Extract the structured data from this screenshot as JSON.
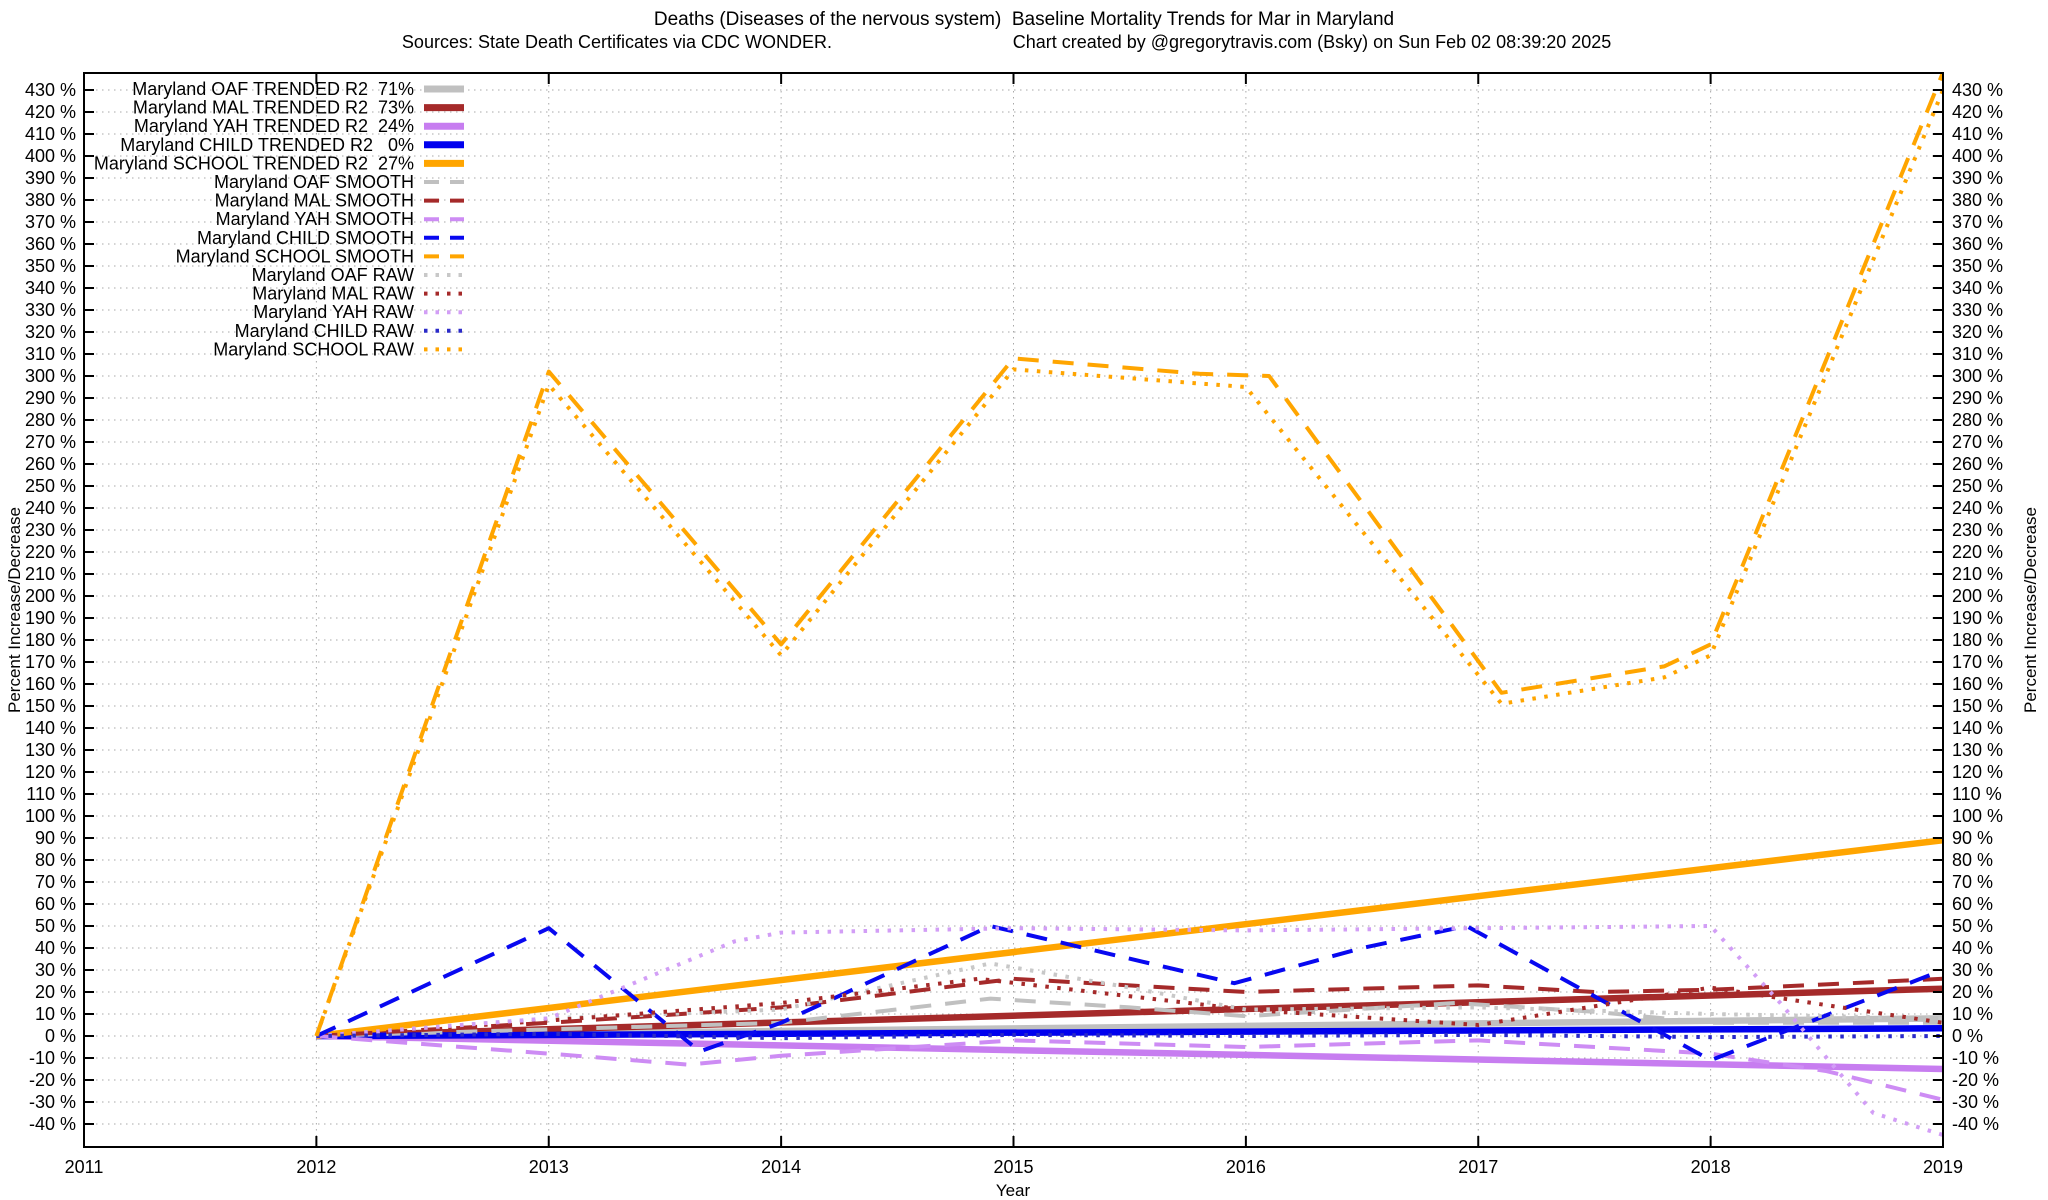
{
  "header": {
    "title": "Deaths (Diseases of the nervous system)  Baseline Mortality Trends for Mar in Maryland",
    "subtitle_left": "Sources: State Death Certificates via CDC WONDER.",
    "subtitle_right": "Chart created by @gregorytravis.com (Bsky) on Sun Feb 02 08:39:20 2025"
  },
  "chart_data": {
    "type": "line",
    "title": "Deaths (Diseases of the nervous system)  Baseline Mortality Trends for Mar in Maryland",
    "xlabel": "Year",
    "ylabel_left": "Percent Increase/Decrease",
    "ylabel_right": "Percent Increase/Decrease",
    "xlim": [
      2011,
      2019
    ],
    "ylim": [
      -50.5,
      437.7
    ],
    "x_ticks": [
      2011,
      2012,
      2013,
      2014,
      2015,
      2016,
      2017,
      2018,
      2019
    ],
    "y_ticks_pct": {
      "min": -40,
      "max": 430,
      "step": 10,
      "suffix": " %"
    },
    "grid": true,
    "legend_position": "top-left-inside",
    "series": [
      {
        "id": "oaf-trended",
        "label": "Maryland OAF TRENDED R2  71%",
        "r2": "71%",
        "color": "#c0c0c0",
        "style": "trended",
        "points": [
          [
            2012,
            0
          ],
          [
            2019,
            8
          ]
        ]
      },
      {
        "id": "mal-trended",
        "label": "Maryland MAL TRENDED R2  73%",
        "r2": "73%",
        "color": "#a52a2a",
        "style": "trended",
        "points": [
          [
            2012,
            0
          ],
          [
            2019,
            21.5
          ]
        ]
      },
      {
        "id": "yah-trended",
        "label": "Maryland YAH TRENDED R2  24%",
        "r2": "24%",
        "color": "#c77df0",
        "style": "trended",
        "points": [
          [
            2012,
            0
          ],
          [
            2019,
            -15
          ]
        ]
      },
      {
        "id": "child-trended",
        "label": "Maryland CHILD TRENDED R2   0%",
        "r2": "0%",
        "color": "#0000ee",
        "style": "trended",
        "points": [
          [
            2012,
            0
          ],
          [
            2019,
            3.5
          ]
        ]
      },
      {
        "id": "school-trended",
        "label": "Maryland SCHOOL TRENDED R2  27%",
        "r2": "27%",
        "color": "#ffa500",
        "style": "trended",
        "points": [
          [
            2012,
            0
          ],
          [
            2019,
            89
          ]
        ]
      },
      {
        "id": "oaf-smooth",
        "label": "Maryland OAF SMOOTH",
        "color": "#c0c0c0",
        "style": "smooth",
        "points": [
          [
            2012,
            0
          ],
          [
            2013,
            3
          ],
          [
            2014,
            6
          ],
          [
            2014.9,
            17
          ],
          [
            2015.5,
            13
          ],
          [
            2016,
            9
          ],
          [
            2016.9,
            15
          ],
          [
            2017.5,
            11
          ],
          [
            2018,
            6
          ],
          [
            2019,
            6
          ]
        ]
      },
      {
        "id": "mal-smooth",
        "label": "Maryland MAL SMOOTH",
        "color": "#a52a2a",
        "style": "smooth",
        "points": [
          [
            2012,
            0
          ],
          [
            2013,
            6
          ],
          [
            2014,
            13
          ],
          [
            2015,
            26
          ],
          [
            2015.5,
            23
          ],
          [
            2016,
            20
          ],
          [
            2017,
            23
          ],
          [
            2017.5,
            20
          ],
          [
            2018,
            21
          ],
          [
            2019,
            26
          ]
        ]
      },
      {
        "id": "yah-smooth",
        "label": "Maryland YAH SMOOTH",
        "color": "#cd8cf4",
        "style": "smooth",
        "points": [
          [
            2012,
            0
          ],
          [
            2013,
            -8
          ],
          [
            2013.6,
            -13
          ],
          [
            2014,
            -9
          ],
          [
            2015,
            -2
          ],
          [
            2016,
            -5
          ],
          [
            2017,
            -2
          ],
          [
            2018,
            -8
          ],
          [
            2018.5,
            -16
          ],
          [
            2019,
            -29
          ]
        ]
      },
      {
        "id": "child-smooth",
        "label": "Maryland CHILD SMOOTH",
        "color": "#0808f0",
        "style": "smooth",
        "points": [
          [
            2012,
            0
          ],
          [
            2013,
            49
          ],
          [
            2013.65,
            -7
          ],
          [
            2014,
            6
          ],
          [
            2014.9,
            50
          ],
          [
            2015.95,
            24
          ],
          [
            2016.5,
            40
          ],
          [
            2016.95,
            50
          ],
          [
            2018,
            -11
          ],
          [
            2019,
            30
          ]
        ]
      },
      {
        "id": "school-smooth",
        "label": "Maryland SCHOOL SMOOTH",
        "color": "#ffa500",
        "style": "smooth",
        "points": [
          [
            2012,
            0
          ],
          [
            2013,
            302
          ],
          [
            2014,
            178
          ],
          [
            2015,
            308
          ],
          [
            2015.8,
            301
          ],
          [
            2016.1,
            300
          ],
          [
            2017.1,
            156
          ],
          [
            2017.8,
            168
          ],
          [
            2018,
            178
          ],
          [
            2019,
            438
          ]
        ]
      },
      {
        "id": "oaf-raw",
        "label": "Maryland OAF RAW",
        "color": "#c8c8c8",
        "style": "raw",
        "points": [
          [
            2012,
            0
          ],
          [
            2013,
            8
          ],
          [
            2014,
            12
          ],
          [
            2014.9,
            33
          ],
          [
            2015.5,
            22
          ],
          [
            2016,
            12
          ],
          [
            2017,
            13
          ],
          [
            2018,
            10
          ],
          [
            2019,
            8
          ]
        ]
      },
      {
        "id": "mal-raw",
        "label": "Maryland MAL RAW",
        "color": "#a52a2a",
        "style": "raw",
        "points": [
          [
            2012,
            0
          ],
          [
            2013,
            7
          ],
          [
            2014,
            15
          ],
          [
            2014.85,
            26
          ],
          [
            2016,
            12
          ],
          [
            2017,
            5
          ],
          [
            2018,
            22
          ],
          [
            2019,
            6
          ]
        ]
      },
      {
        "id": "yah-raw",
        "label": "Maryland YAH RAW",
        "color": "#d29ef6",
        "style": "raw",
        "points": [
          [
            2012,
            0
          ],
          [
            2013,
            8
          ],
          [
            2013.8,
            43
          ],
          [
            2014,
            47
          ],
          [
            2015,
            49
          ],
          [
            2016,
            48
          ],
          [
            2017,
            49
          ],
          [
            2018,
            50
          ],
          [
            2018.3,
            15
          ],
          [
            2018.7,
            -35
          ],
          [
            2019,
            -45
          ]
        ]
      },
      {
        "id": "child-raw",
        "label": "Maryland CHILD RAW",
        "color": "#2a2ac8",
        "style": "raw",
        "points": [
          [
            2012,
            0
          ],
          [
            2013,
            1
          ],
          [
            2014,
            -1
          ],
          [
            2015,
            0.5
          ],
          [
            2016,
            0
          ],
          [
            2017,
            0.5
          ],
          [
            2018,
            -0.5
          ],
          [
            2019,
            0
          ]
        ]
      },
      {
        "id": "school-raw",
        "label": "Maryland SCHOOL RAW",
        "color": "#ffa500",
        "style": "raw",
        "points": [
          [
            2012,
            0
          ],
          [
            2013,
            296
          ],
          [
            2014,
            173
          ],
          [
            2015,
            303
          ],
          [
            2016,
            295
          ],
          [
            2017.1,
            151
          ],
          [
            2017.8,
            163
          ],
          [
            2018,
            173
          ],
          [
            2019,
            430
          ]
        ]
      }
    ]
  }
}
